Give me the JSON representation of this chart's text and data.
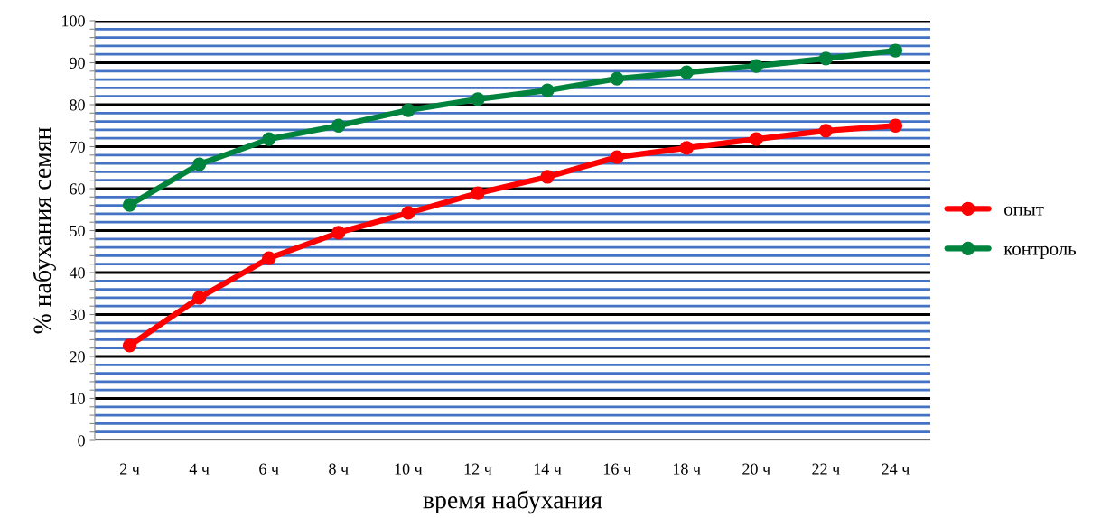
{
  "chart_data": {
    "type": "line",
    "xlabel": "время набухания",
    "ylabel": "% набухания семян",
    "categories": [
      "2 ч",
      "4 ч",
      "6 ч",
      "8 ч",
      "10 ч",
      "12 ч",
      "14 ч",
      "16 ч",
      "18 ч",
      "20 ч",
      "22 ч",
      "24 ч"
    ],
    "series": [
      {
        "name": "опыт",
        "color": "#ff0000",
        "values": [
          22.6,
          34,
          43.4,
          49.5,
          54.2,
          58.9,
          62.8,
          67.5,
          69.7,
          71.8,
          73.8,
          75
        ]
      },
      {
        "name": "контроль",
        "color": "#00843d",
        "values": [
          56.1,
          65.8,
          71.8,
          75,
          78.7,
          81.3,
          83.4,
          86.2,
          87.7,
          89.2,
          91,
          92.9
        ]
      }
    ],
    "ylim": [
      0,
      100
    ],
    "yticks": [
      0,
      {
        "value": 2,
        "label": null
      },
      {
        "value": 4,
        "label": null
      },
      {
        "value": 6,
        "label": null
      },
      {
        "value": 8,
        "label": null
      },
      10,
      {
        "value": 12,
        "label": null
      },
      {
        "value": 14,
        "label": null
      },
      {
        "value": 16,
        "label": null
      },
      {
        "value": 18,
        "label": null
      },
      20,
      {
        "value": 22,
        "label": null
      },
      {
        "value": 24,
        "label": null
      },
      {
        "value": 26,
        "label": null
      },
      {
        "value": 28,
        "label": null
      },
      30,
      {
        "value": 32,
        "label": null
      },
      {
        "value": 34,
        "label": null
      },
      {
        "value": 36,
        "label": null
      },
      {
        "value": 38,
        "label": null
      },
      40,
      {
        "value": 42,
        "label": null
      },
      {
        "value": 44,
        "label": null
      },
      {
        "value": 46,
        "label": null
      },
      {
        "value": 48,
        "label": null
      },
      50,
      {
        "value": 52,
        "label": null
      },
      {
        "value": 54,
        "label": null
      },
      {
        "value": 56,
        "label": null
      },
      {
        "value": 58,
        "label": null
      },
      60,
      {
        "value": 62,
        "label": null
      },
      {
        "value": 64,
        "label": null
      },
      {
        "value": 66,
        "label": null
      },
      {
        "value": 68,
        "label": null
      },
      70,
      {
        "value": 72,
        "label": null
      },
      {
        "value": 74,
        "label": null
      },
      {
        "value": 76,
        "label": null
      },
      {
        "value": 78,
        "label": null
      },
      80,
      {
        "value": 82,
        "label": null
      },
      {
        "value": 84,
        "label": null
      },
      {
        "value": 86,
        "label": null
      },
      {
        "value": 88,
        "label": null
      },
      90,
      {
        "value": 92,
        "label": null
      },
      {
        "value": 94,
        "label": null
      },
      {
        "value": 96,
        "label": null
      },
      {
        "value": 98,
        "label": null
      },
      100
    ],
    "grid": "y",
    "legend": "right",
    "marker": "circle",
    "line_style": "solid"
  }
}
